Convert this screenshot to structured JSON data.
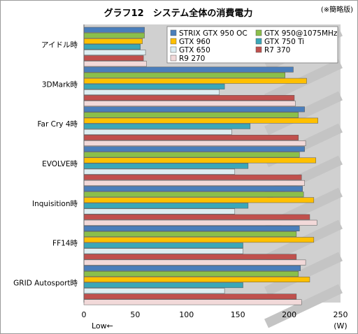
{
  "chart_data": {
    "type": "bar",
    "orientation": "horizontal",
    "title": "グラフ12　システム全体の消費電力",
    "note": "(※簡略版)",
    "categories": [
      "アイドル時",
      "3DMark時",
      "Far Cry 4時",
      "EVOLVE時",
      "Inquisition時",
      "FF14時",
      "GRID Autosport時"
    ],
    "series": [
      {
        "name": "STRIX GTX 950 OC",
        "color": "#4a7ebb",
        "values": [
          59,
          204,
          215,
          215,
          213,
          210,
          211
        ]
      },
      {
        "name": "GTX 950@1075MHz",
        "color": "#8bbf4a",
        "values": [
          59,
          196,
          209,
          210,
          214,
          207,
          209
        ]
      },
      {
        "name": "GTX 960",
        "color": "#ffc000",
        "values": [
          57,
          217,
          228,
          226,
          224,
          224,
          220
        ]
      },
      {
        "name": "GTX 750 Ti",
        "color": "#3aa7b8",
        "values": [
          55,
          137,
          162,
          160,
          160,
          155,
          155
        ]
      },
      {
        "name": "GTX 650",
        "color": "#ddeef2",
        "values": [
          60,
          132,
          144,
          147,
          147,
          155,
          137
        ]
      },
      {
        "name": "R7 370",
        "color": "#c0504d",
        "values": [
          58,
          205,
          209,
          212,
          220,
          207,
          207
        ]
      },
      {
        "name": "R9 270",
        "color": "#f2d9d9",
        "values": [
          61,
          206,
          216,
          215,
          227,
          216,
          212
        ]
      }
    ],
    "xlim": [
      0,
      250
    ],
    "xticks": [
      0,
      50,
      100,
      150,
      200,
      250
    ],
    "xlabel": "Low←",
    "unit": "(W)",
    "legend_position": "top-right",
    "grid": false
  }
}
